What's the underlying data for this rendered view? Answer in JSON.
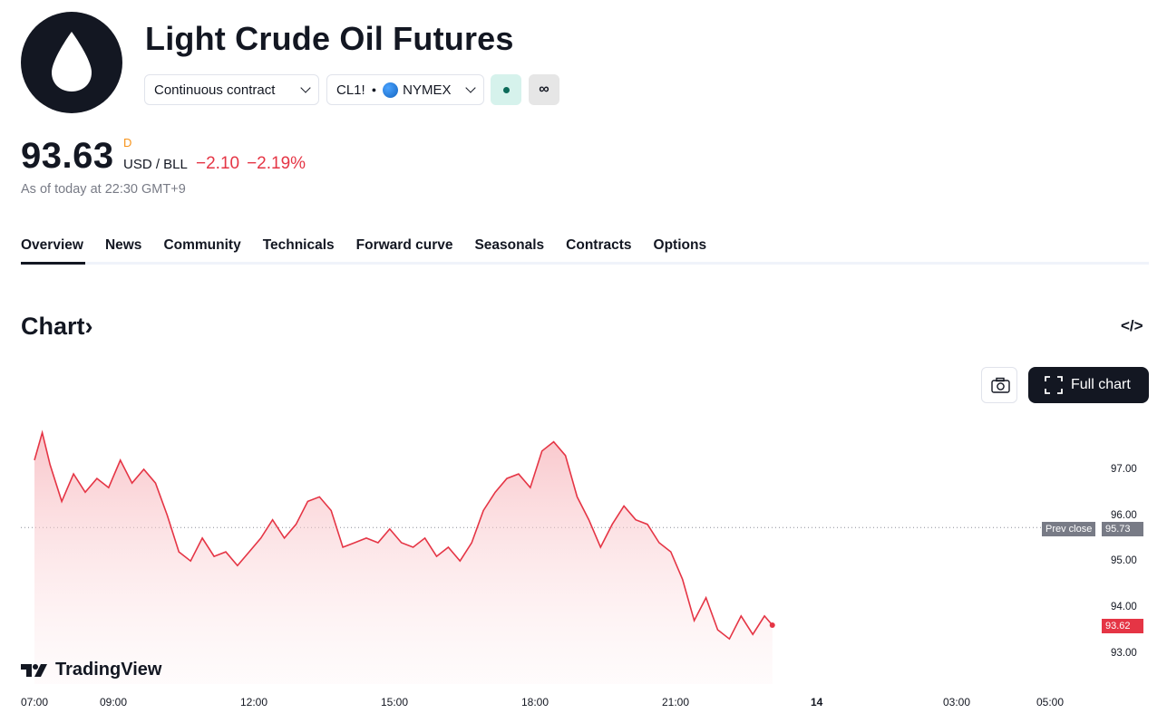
{
  "header": {
    "title": "Light Crude Oil Futures",
    "contract_selector": "Continuous contract",
    "symbol": "CL1!",
    "exchange": "NYMEX",
    "infinity_label": "∞"
  },
  "quote": {
    "price": "93.63",
    "interval": "D",
    "currency": "USD / BLL",
    "change": "−2.10",
    "change_percent": "−2.19%",
    "as_of": "As of today at 22:30 GMT+9"
  },
  "tabs": [
    "Overview",
    "News",
    "Community",
    "Technicals",
    "Forward curve",
    "Seasonals",
    "Contracts",
    "Options"
  ],
  "chart_section": {
    "heading": "Chart",
    "embed_icon": "</>",
    "full_chart_label": "Full chart",
    "brand": "TradingView"
  },
  "chart_data": {
    "type": "area",
    "line_color": "#e53545",
    "y_ticks": [
      "97.00",
      "96.00",
      "95.00",
      "94.00",
      "93.00"
    ],
    "x_ticks": [
      "07:00",
      "09:00",
      "12:00",
      "15:00",
      "18:00",
      "21:00",
      "14",
      "03:00",
      "05:00"
    ],
    "prev_close_label": "Prev close",
    "prev_close": "95.73",
    "last_price_label": "93.62",
    "points": [
      [
        "07:00",
        97.2
      ],
      [
        "07:10",
        97.8
      ],
      [
        "07:20",
        97.1
      ],
      [
        "07:35",
        96.3
      ],
      [
        "07:50",
        96.9
      ],
      [
        "08:05",
        96.5
      ],
      [
        "08:20",
        96.8
      ],
      [
        "08:35",
        96.6
      ],
      [
        "08:50",
        97.2
      ],
      [
        "09:05",
        96.7
      ],
      [
        "09:20",
        97.0
      ],
      [
        "09:35",
        96.7
      ],
      [
        "09:50",
        96.0
      ],
      [
        "10:05",
        95.2
      ],
      [
        "10:20",
        95.0
      ],
      [
        "10:35",
        95.5
      ],
      [
        "10:50",
        95.1
      ],
      [
        "11:05",
        95.2
      ],
      [
        "11:20",
        94.9
      ],
      [
        "11:35",
        95.2
      ],
      [
        "11:50",
        95.5
      ],
      [
        "12:05",
        95.9
      ],
      [
        "12:20",
        95.5
      ],
      [
        "12:35",
        95.8
      ],
      [
        "12:50",
        96.3
      ],
      [
        "13:05",
        96.4
      ],
      [
        "13:20",
        96.1
      ],
      [
        "13:35",
        95.3
      ],
      [
        "13:50",
        95.4
      ],
      [
        "14:05",
        95.5
      ],
      [
        "14:20",
        95.4
      ],
      [
        "14:35",
        95.7
      ],
      [
        "14:50",
        95.4
      ],
      [
        "15:05",
        95.3
      ],
      [
        "15:20",
        95.5
      ],
      [
        "15:35",
        95.1
      ],
      [
        "15:50",
        95.3
      ],
      [
        "16:05",
        95.0
      ],
      [
        "16:20",
        95.4
      ],
      [
        "16:35",
        96.1
      ],
      [
        "16:50",
        96.5
      ],
      [
        "17:05",
        96.8
      ],
      [
        "17:20",
        96.9
      ],
      [
        "17:35",
        96.6
      ],
      [
        "17:50",
        97.4
      ],
      [
        "18:05",
        97.6
      ],
      [
        "18:20",
        97.3
      ],
      [
        "18:35",
        96.4
      ],
      [
        "18:50",
        95.9
      ],
      [
        "19:05",
        95.3
      ],
      [
        "19:20",
        95.8
      ],
      [
        "19:35",
        96.2
      ],
      [
        "19:50",
        95.9
      ],
      [
        "20:05",
        95.8
      ],
      [
        "20:20",
        95.4
      ],
      [
        "20:35",
        95.2
      ],
      [
        "20:50",
        94.6
      ],
      [
        "21:05",
        93.7
      ],
      [
        "21:20",
        94.2
      ],
      [
        "21:35",
        93.5
      ],
      [
        "21:50",
        93.3
      ],
      [
        "22:05",
        93.8
      ],
      [
        "22:20",
        93.4
      ],
      [
        "22:35",
        93.8
      ],
      [
        "22:45",
        93.6
      ]
    ]
  }
}
